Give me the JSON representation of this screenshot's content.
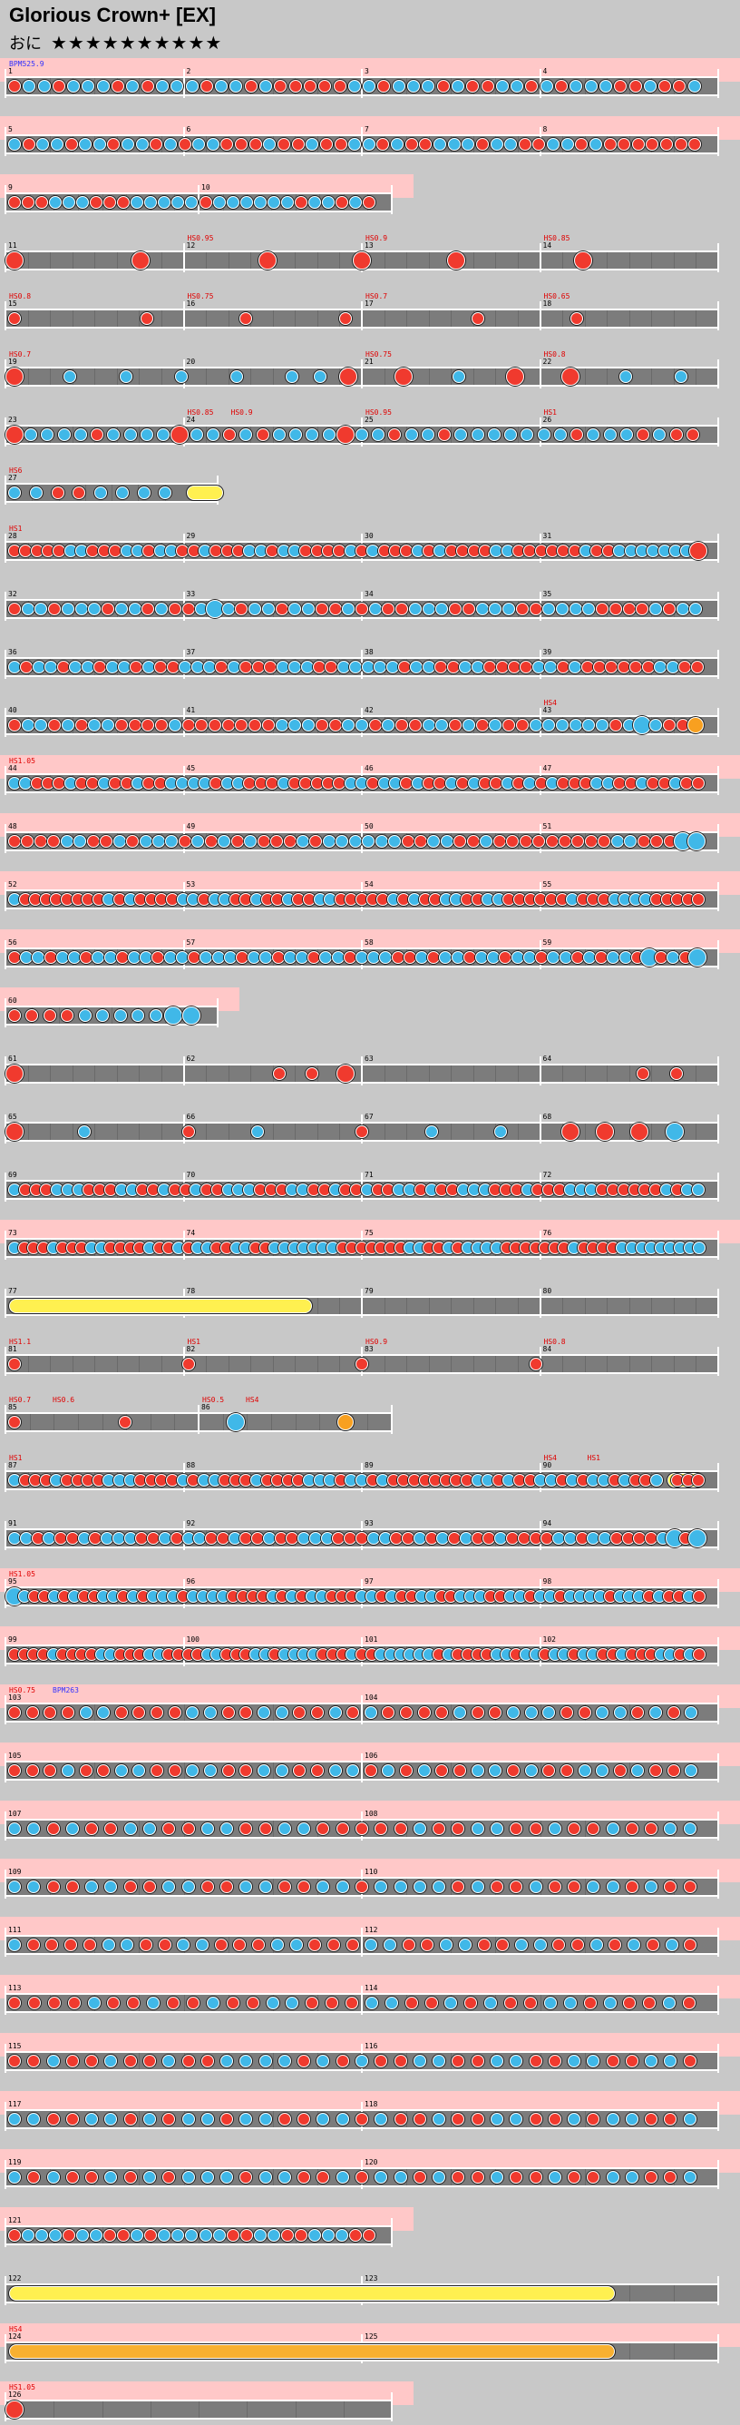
{
  "song": {
    "title": "Glorious Crown+ [EX]",
    "difficulty_label": "おに",
    "stars": "★★★★★★★★★★"
  },
  "colors": {
    "background": "#c8c8c8",
    "pink_band": "#ffc8c8",
    "lane": "#7c7c7c",
    "don": "#f03a2e",
    "ka": "#40b8e8",
    "drumroll": "#fff050",
    "balloon": "#f8a020"
  },
  "rows": [
    {
      "measures": [
        "1",
        "2",
        "3",
        "4"
      ],
      "cmds": [
        {
          "t": "BPM525.9",
          "c": "blue"
        }
      ],
      "pink": true,
      "notes": "bkkbkkkbkbkk kbkkbkbbbbb kkbkkkbkbbkk bkbkkkbbkbbk"
    },
    {
      "measures": [
        "5",
        "6",
        "7",
        "8"
      ],
      "cmds": [],
      "pink": true,
      "notes": "kbkkbkkbkkbk bkkbbbkbbkbb kkbkbbkkkbkk bbkkbkbbbbbbb"
    },
    {
      "measures": [
        "9",
        "10"
      ],
      "cmds": [],
      "pink": true,
      "half": true,
      "notes": "bbbkkkbbbkkkk kbkkkkkkbkkbkb"
    },
    {
      "measures": [
        "11",
        "12",
        "13",
        "14"
      ],
      "cmds": [
        {
          "t": "HS0.95",
          "at": 1
        },
        {
          "t": "HS0.9",
          "at": 2
        },
        {
          "t": "HS0.85",
          "at": 3
        }
      ],
      "pink": false,
      "notes": "B...B...B..B..B...B..."
    },
    {
      "measures": [
        "15",
        "16",
        "17",
        "18"
      ],
      "cmds": [
        {
          "t": "HS0.8",
          "at": 0
        },
        {
          "t": "HS0.75",
          "at": 1
        },
        {
          "t": "HS0.7",
          "at": 2
        },
        {
          "t": "HS0.65",
          "at": 3
        }
      ],
      "pink": false,
      "notes": "b...b..b..b...b..b..."
    },
    {
      "measures": [
        "19",
        "20",
        "21",
        "22"
      ],
      "cmds": [
        {
          "t": "HS0.7",
          "at": 0
        },
        {
          "t": "HS0.75",
          "at": 2
        },
        {
          "t": "HS0.8",
          "at": 3
        }
      ],
      "pink": false,
      "notes": "B.k.k.k.k.kk B.B.k. B.B.k.k"
    },
    {
      "measures": [
        "23",
        "24",
        "25",
        "26"
      ],
      "cmds": [
        {
          "t": "HS0.85",
          "at": 1
        },
        {
          "t": "HS0.9",
          "at": 1
        },
        {
          "t": "HS0.95",
          "at": 2
        },
        {
          "t": "HS1",
          "at": 3
        }
      ],
      "pink": false,
      "notes": "Bkkkkbkkkk Bkkbkbkkkk Bkkbkkbkkk kkkkbkkkbkbb"
    },
    {
      "measures": [
        "27"
      ],
      "cmds": [
        {
          "t": "HS6",
          "at": 0
        }
      ],
      "pink": false,
      "short": true,
      "notes": "kkbbkkkkR"
    },
    {
      "measures": [
        "28",
        "29",
        "30",
        "31"
      ],
      "cmds": [
        {
          "t": "HS1",
          "at": 0
        }
      ],
      "pink": false,
      "notes": "bbbbbkkbbbkkbkk bbkbbbkkbkkbbbb kbkbbbkbkbbbbkkb bbbbbkbbkkkkkkkB"
    },
    {
      "measures": [
        "32",
        "33",
        "34",
        "35"
      ],
      "cmds": [],
      "pink": false,
      "notes": "bkkbkkkbkkbkb bkKkbkkbkkbbk bkbbkkkbbkkkb bkkkkbbbbkbkk"
    },
    {
      "measures": [
        "36",
        "37",
        "38",
        "39"
      ],
      "cmds": [],
      "pink": false,
      "notes": "kbkkbkkbkkbkbb kkkbkbbbkkkbbkk kkkbkkbbkkbbbb kkbkbbbbbbkkbb"
    },
    {
      "measures": [
        "40",
        "41",
        "42",
        "43"
      ],
      "cmds": [
        {
          "t": "HS4",
          "at": 3
        }
      ],
      "pink": false,
      "notes": "bkkbkbkkbbbbkb bbbbbbkkkbbkkb kbbkkbkbkbbkkkk kkbkKkbbO"
    },
    {
      "measures": [
        "44",
        "45",
        "46",
        "47"
      ],
      "cmds": [
        {
          "t": "HS1.05",
          "at": 0
        }
      ],
      "pink": true,
      "notes": "kkbbbkbbkbbkbbkk kkbkkbbbkbbbbbkk bkkbkbbkbkbbkbk bkbbbkkbbkbbkbb"
    },
    {
      "measures": [
        "48",
        "49",
        "50",
        "51"
      ],
      "cmds": [],
      "pink": true,
      "notes": "bbbbkkbbkbkkk bkbkbkbbbkbkkk kkkbbkkbbkbbbb bbbbbkkbbbKK"
    },
    {
      "measures": [
        "52",
        "53",
        "54",
        "55"
      ],
      "cmds": [],
      "pink": true,
      "notes": "kbbbbbbbbkbkbbbb kkbkkbbkbbkbbkkb bbbbkbkbbkkbbkkbbb bbbkbbbkkkkbbbbb"
    },
    {
      "measures": [
        "56",
        "57",
        "58",
        "59"
      ],
      "cmds": [],
      "pink": true,
      "notes": "bkkbkkbkkbkkbkkb kkkbkkbkkbkkbkkk bbkbkkbkkbkkbkkb kbkkbKbkbK"
    },
    {
      "measures": [
        "60"
      ],
      "cmds": [],
      "pink": true,
      "short": true,
      "notes": "bbbbkkkkkKK"
    },
    {
      "measures": [
        "61",
        "62",
        "63",
        "64"
      ],
      "cmds": [],
      "pink": false,
      "notes": "B.......bb B........b b"
    },
    {
      "measures": [
        "65",
        "66",
        "67",
        "68"
      ],
      "cmds": [],
      "pink": false,
      "notes": "B.k..b.k..b.k.k.BBB K"
    },
    {
      "measures": [
        "69",
        "70",
        "71",
        "72"
      ],
      "cmds": [],
      "pink": false,
      "notes": "kbbbkkkbbbkkbbkbb kbbkkkbbbkkbbkbbk bbkkbkbbkkkbbbkb bbkkkbbbbbbkbkk"
    },
    {
      "measures": [
        "73",
        "74",
        "75",
        "76"
      ],
      "cmds": [],
      "pink": true,
      "notes": "kbbbkbbbkkbbbbkbbk bkkbbkkbbkkkkkkkbb bbbbbkkbbkbkkkkbbb bbbbkbbbbkkkkkkkkk"
    },
    {
      "measures": [
        "77",
        "78",
        "79",
        "80"
      ],
      "cmds": [],
      "pink": false,
      "notes": "R"
    },
    {
      "measures": [
        "81",
        "82",
        "83",
        "84"
      ],
      "cmds": [
        {
          "t": "HS1.1",
          "at": 0
        },
        {
          "t": "HS1",
          "at": 1
        },
        {
          "t": "HS0.9",
          "at": 2
        },
        {
          "t": "HS0.8",
          "at": 3
        }
      ],
      "pink": false,
      "notes": "b...b...b...b..."
    },
    {
      "measures": [
        "85",
        "86"
      ],
      "cmds": [
        {
          "t": "HS0.7",
          "at": 0
        },
        {
          "t": "HS0.6",
          "at": 0
        },
        {
          "t": "HS0.5",
          "at": 1
        },
        {
          "t": "HS4",
          "at": 1
        }
      ],
      "pink": false,
      "half": true,
      "notes": "b..b..K..O"
    },
    {
      "measures": [
        "87",
        "88",
        "89",
        "90"
      ],
      "cmds": [
        {
          "t": "HS1",
          "at": 0
        },
        {
          "t": "HS4",
          "at": 3
        },
        {
          "t": "HS1",
          "at": 3
        }
      ],
      "pink": false,
      "notes": "kbbbkbbbbkkkbbbbkb kkbbbkbbbbkkkbkkbk bbbbbbbbkkbkbbkkbk bkkbkbbkRbbb"
    },
    {
      "measures": [
        "91",
        "92",
        "93",
        "94"
      ],
      "cmds": [],
      "pink": false,
      "notes": "kkbkbbkbkkkbbkbk kbbkbbkbbkkkbbbk kbbkbkbkbbkbbbbk kbkkbbbbkKbK"
    },
    {
      "measures": [
        "95",
        "96",
        "97",
        "98"
      ],
      "cmds": [
        {
          "t": "HS1.05",
          "at": 0
        }
      ],
      "pink": true,
      "notes": "Kkbbkbkbbkkbkbkkk bkkkkbbbbkbkbkkbb bkkbkbbkkbbkkkbbkk bkkbkkkkbkkkbkbbkb"
    },
    {
      "measures": [
        "99",
        "100",
        "101",
        "102"
      ],
      "cmds": [],
      "pink": true,
      "notes": "bbbbkbbbbkkbbbkkbb bbkkbbbkkbkkkkbbbk bbkkkkkkbkbbbbkkbk kbkkbkkbbkbbbkkbkb"
    },
    {
      "measures": [
        "103",
        "104"
      ],
      "cmds": [
        {
          "t": "HS0.75",
          "at": 0
        },
        {
          "t": "BPM263",
          "c": "blue",
          "at": 0
        }
      ],
      "pink": true,
      "notes": "bbbbkkbbbbkkbbkkbb kbkbbbbkbbkkkbbkkbkbk"
    },
    {
      "measures": [
        "105",
        "106"
      ],
      "cmds": [],
      "pink": true,
      "notes": "bbbkbbkkbbkkbbkkbbkk bkbkbbkkbkbbkkbkbbk"
    },
    {
      "measures": [
        "107",
        "108"
      ],
      "cmds": [],
      "pink": true,
      "notes": "kkbkbbkkbbkkbbkkbb bbbkbbkkbbkbbkbbkk"
    },
    {
      "measures": [
        "109",
        "110"
      ],
      "cmds": [],
      "pink": true,
      "notes": "kkbbkkbbkkbbkkbbkk bkkkkbkbbkbbkkbkbb"
    },
    {
      "measures": [
        "111",
        "112"
      ],
      "cmds": [],
      "pink": true,
      "notes": "kbbbbkkbbkkbbbkkbb bkkbbkkbbkkbbkbkbkb"
    },
    {
      "measures": [
        "113",
        "114"
      ],
      "cmds": [],
      "pink": true,
      "notes": "bbbbkbbkbbkbbkkbb bkkbbkbkbbkkbkbbkb"
    },
    {
      "measures": [
        "115",
        "116"
      ],
      "cmds": [],
      "pink": true,
      "notes": "bbkbbkbbkbbkkkkbkb kbbkkbbkkbbkkbbkkb"
    },
    {
      "measures": [
        "117",
        "118"
      ],
      "cmds": [],
      "pink": true,
      "notes": "kkbbkkbkbkkbkkbbkk bkbbkbbkkbbkbkkbbk"
    },
    {
      "measures": [
        "119",
        "120"
      ],
      "cmds": [],
      "pink": true,
      "notes": "kbkbbkbkbkkkbkkbbk bkkbkbbkbbkbbkkbbk"
    },
    {
      "measures": [
        "121"
      ],
      "cmds": [],
      "pink": true,
      "half": true,
      "notes": "bkkkbkkbbkbkkkkkbbkkbbkkkbb"
    },
    {
      "measures": [
        "122",
        "123"
      ],
      "cmds": [],
      "pink": false,
      "notes": "R"
    },
    {
      "measures": [
        "124",
        "125"
      ],
      "cmds": [
        {
          "t": "HS4",
          "at": 0
        }
      ],
      "pink": true,
      "notes": "O"
    },
    {
      "measures": [
        "126"
      ],
      "cmds": [
        {
          "t": "HS1.05",
          "at": 0
        }
      ],
      "pink": true,
      "half": true,
      "notes": "B"
    }
  ]
}
